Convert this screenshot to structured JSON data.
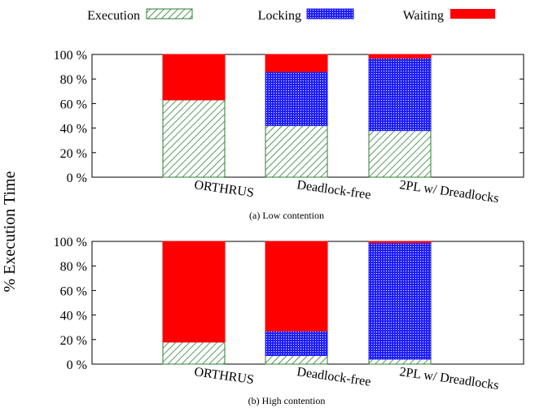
{
  "legend": {
    "items": [
      {
        "label": "Execution",
        "pattern": "diagonal-hatch",
        "color": "#2e7d32"
      },
      {
        "label": "Locking",
        "pattern": "dotted-fill",
        "color": "#1f1fff"
      },
      {
        "label": "Waiting",
        "pattern": "solid",
        "color": "#ff0000"
      }
    ]
  },
  "ylabel": "% Execution Time",
  "chart_data": [
    {
      "type": "bar",
      "stacked": true,
      "caption": "(a) Low contention",
      "categories": [
        "ORTHRUS",
        "Deadlock-free",
        "2PL w/ Dreadlocks"
      ],
      "ylim": [
        0,
        100
      ],
      "yticks": [
        "0 %",
        "20 %",
        "40 %",
        "60 %",
        "80 %",
        "100 %"
      ],
      "series": [
        {
          "name": "Execution",
          "values": [
            63,
            42,
            38
          ]
        },
        {
          "name": "Locking",
          "values": [
            0,
            44,
            59
          ]
        },
        {
          "name": "Waiting",
          "values": [
            37,
            14,
            3
          ]
        }
      ]
    },
    {
      "type": "bar",
      "stacked": true,
      "caption": "(b) High contention",
      "categories": [
        "ORTHRUS",
        "Deadlock-free",
        "2PL w/ Dreadlocks"
      ],
      "ylim": [
        0,
        100
      ],
      "yticks": [
        "0 %",
        "20 %",
        "40 %",
        "60 %",
        "80 %",
        "100 %"
      ],
      "series": [
        {
          "name": "Execution",
          "values": [
            18,
            7,
            4
          ]
        },
        {
          "name": "Locking",
          "values": [
            0,
            20,
            95
          ]
        },
        {
          "name": "Waiting",
          "values": [
            82,
            73,
            1
          ]
        }
      ]
    }
  ],
  "colors": {
    "execution": "#2e7d32",
    "locking": "#1f1fff",
    "waiting": "#ff0000"
  }
}
